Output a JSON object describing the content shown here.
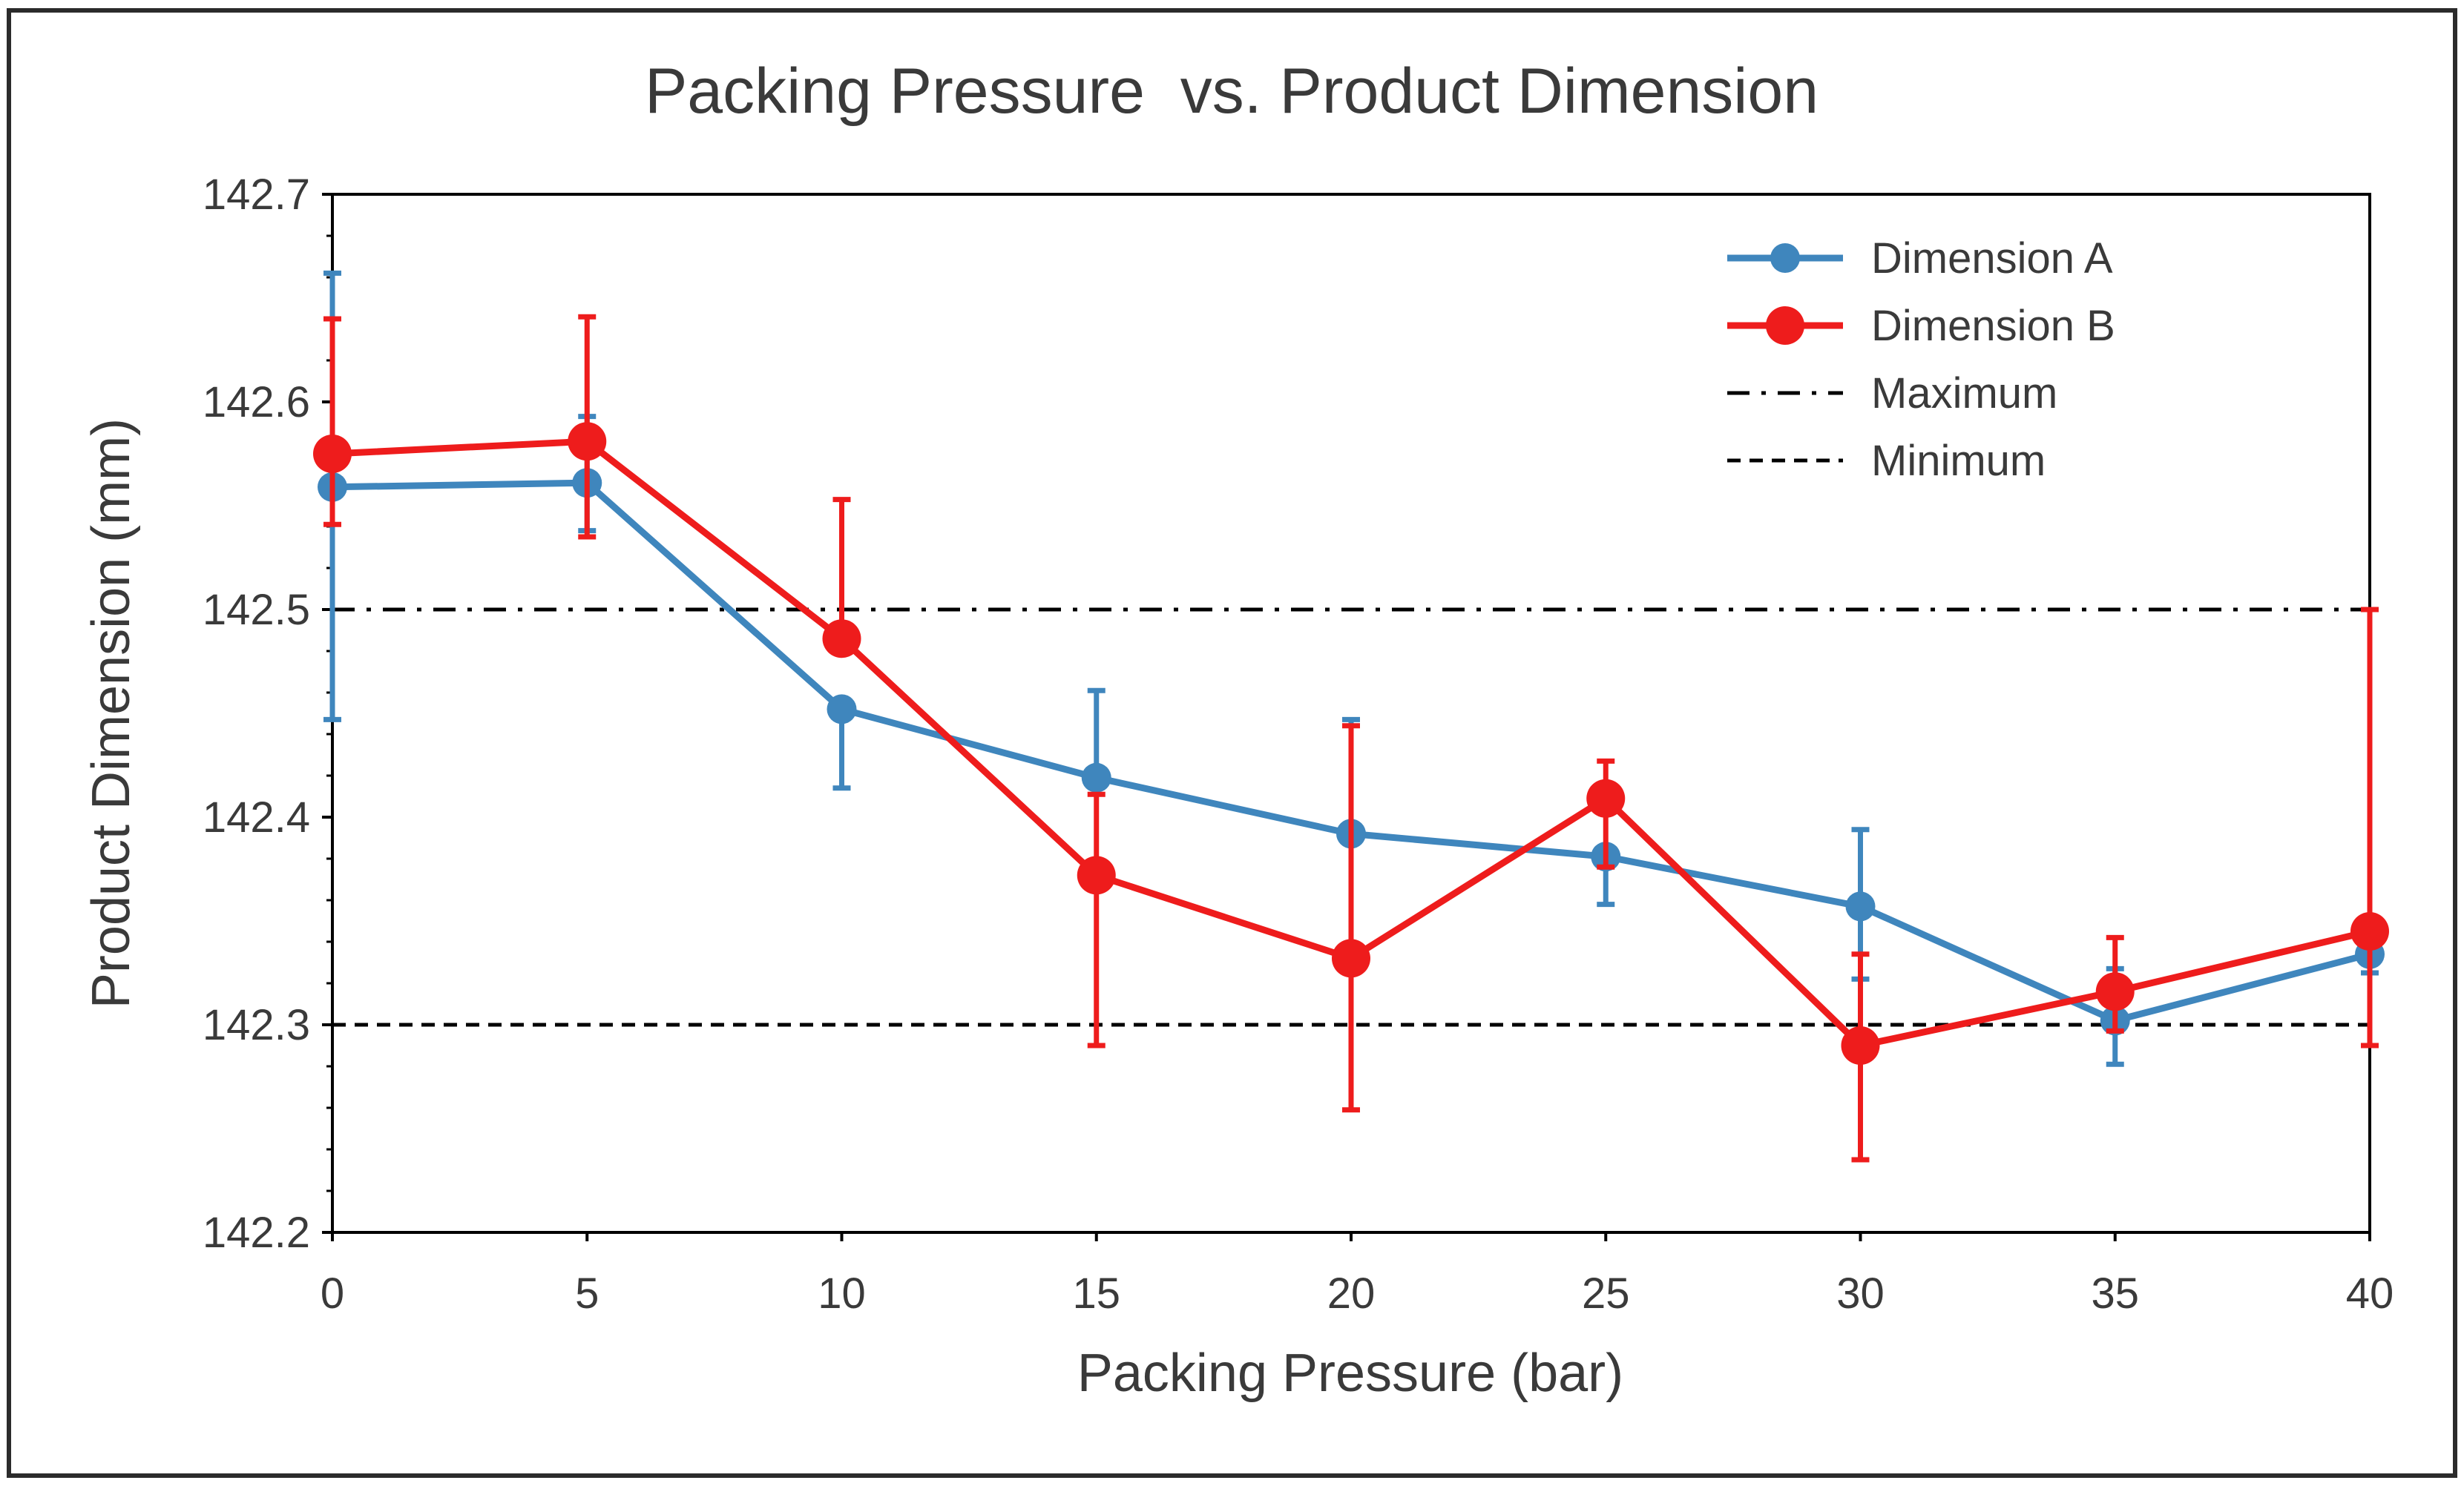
{
  "chart_data": {
    "type": "line",
    "title": "Packing Pressure  vs. Product Dimension",
    "xlabel": "Packing Pressure (bar)",
    "ylabel": "Product Dimension (mm)",
    "x": [
      0,
      5,
      10,
      15,
      20,
      25,
      30,
      35,
      40
    ],
    "xlim": [
      0,
      40
    ],
    "ylim": [
      142.2,
      142.7
    ],
    "xticks": [
      0,
      5,
      10,
      15,
      20,
      25,
      30,
      35,
      40
    ],
    "xtick_labels": [
      "0",
      "5",
      "10",
      "15",
      "20",
      "25",
      "30",
      "35",
      "40"
    ],
    "yticks": [
      142.2,
      142.3,
      142.4,
      142.5,
      142.6,
      142.7
    ],
    "ytick_labels": [
      "142.2",
      "142.3",
      "142.4",
      "142.5",
      "142.6",
      "142.7"
    ],
    "grid": false,
    "legend_position": "top-right",
    "series": [
      {
        "name": "Dimension A",
        "color": "#3f86bd",
        "values": [
          142.559,
          142.561,
          142.452,
          142.419,
          142.392,
          142.381,
          142.357,
          142.302,
          142.334
        ],
        "error_upper": [
          142.662,
          142.593,
          142.452,
          142.461,
          142.447,
          142.381,
          142.394,
          142.327,
          142.344
        ],
        "error_lower": [
          142.447,
          142.538,
          142.414,
          142.419,
          142.392,
          142.358,
          142.322,
          142.281,
          142.325
        ]
      },
      {
        "name": "Dimension B",
        "color": "#ee1c1c",
        "values": [
          142.575,
          142.581,
          142.486,
          142.372,
          142.332,
          142.409,
          142.29,
          142.316,
          142.345
        ],
        "error_upper": [
          142.64,
          142.641,
          142.553,
          142.411,
          142.444,
          142.427,
          142.334,
          142.342,
          142.5
        ],
        "error_lower": [
          142.541,
          142.535,
          142.486,
          142.29,
          142.259,
          142.376,
          142.235,
          142.297,
          142.29
        ]
      }
    ],
    "reference_lines": [
      {
        "name": "Maximum",
        "value": 142.5,
        "style": "dash-dot",
        "color": "#000000"
      },
      {
        "name": "Minimum",
        "value": 142.3,
        "style": "dashed",
        "color": "#000000"
      }
    ]
  }
}
